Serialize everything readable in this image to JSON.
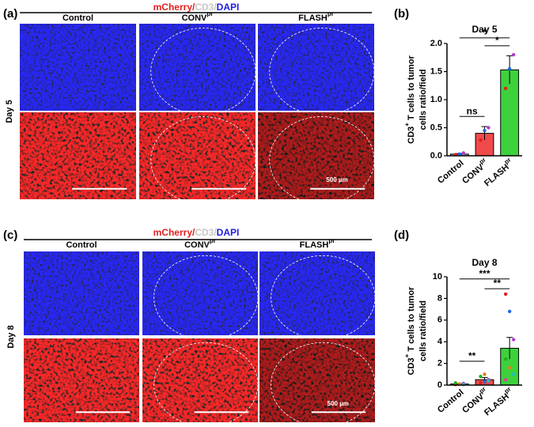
{
  "panels": [
    "(a)",
    "(b)",
    "(c)",
    "(d)"
  ],
  "images": [
    {
      "title_parts": [
        "mCherry/",
        "CD3/",
        "DAPI"
      ],
      "title_colors": [
        "#e0201e",
        "#c8c8c8",
        "#1e1ee0"
      ],
      "columns": [
        {
          "text": "Control"
        },
        {
          "text": "CONV",
          "sup": "pr"
        },
        {
          "text": "FLASH",
          "sup": "pr"
        }
      ],
      "row_label": "Day 5",
      "scale_label": "500 µm"
    },
    {
      "title_parts": [
        "mCherry/",
        "CD3/",
        "DAPI"
      ],
      "title_colors": [
        "#e0201e",
        "#c8c8c8",
        "#1e1ee0"
      ],
      "columns": [
        {
          "text": "Control"
        },
        {
          "text": "CONV",
          "sup": "pr"
        },
        {
          "text": "FLASH",
          "sup": "pr"
        }
      ],
      "row_label": "Day 8",
      "scale_label": "500 µm"
    }
  ],
  "chart_data": [
    {
      "type": "bar",
      "title": "Day 5",
      "ylabel": {
        "main": "CD3",
        "sup": "+",
        "rest": " T cells to tumor",
        "line2": "cells ratio/field"
      },
      "categories": [
        "Control",
        "CONV",
        "FLASH"
      ],
      "category_superscripts": [
        null,
        "pr",
        "pr"
      ],
      "values": [
        0.03,
        0.4,
        1.53
      ],
      "errors": [
        0.01,
        0.12,
        0.25
      ],
      "colors": [
        "#9e9e9e",
        "#f04a4a",
        "#3dd13d"
      ],
      "points": [
        [
          0.02,
          0.03,
          0.05
        ],
        [
          0.28,
          0.45,
          0.5
        ],
        [
          1.2,
          1.55,
          1.8
        ]
      ],
      "point_colors": [
        "#e0201e",
        "#1e6be0",
        "#b040d0"
      ],
      "annotations": [
        "*",
        "*",
        "ns"
      ],
      "ylim": [
        0,
        2
      ],
      "yticks": [
        {
          "value": 0,
          "label": "0.0"
        },
        {
          "value": 0.5,
          "label": "0.5"
        },
        {
          "value": 1,
          "label": "1.0"
        },
        {
          "value": 1.5,
          "label": "1.5"
        },
        {
          "value": 2,
          "label": "2.0"
        }
      ]
    },
    {
      "type": "bar",
      "title": "Day 8",
      "ylabel": {
        "main": "CD3",
        "sup": "+",
        "rest": " T cells to tumor",
        "line2": "cells ratio/field"
      },
      "categories": [
        "Control",
        "CONV",
        "FLASH"
      ],
      "category_superscripts": [
        null,
        "pr",
        "pr"
      ],
      "values": [
        0.1,
        0.5,
        3.4
      ],
      "errors": [
        0.03,
        0.2,
        1.0
      ],
      "colors": [
        "#9e9e9e",
        "#f04a4a",
        "#3dd13d"
      ],
      "points": [
        [
          0.05,
          0.1,
          0.15,
          0.2,
          0.1,
          0.05
        ],
        [
          0.2,
          0.3,
          0.5,
          0.8,
          1.0,
          0.4
        ],
        [
          8.4,
          6.8,
          4.2,
          2.4,
          1.6,
          1.0,
          0.5
        ]
      ],
      "point_colors": [
        "#e0201e",
        "#1e6be0",
        "#b040d0",
        "#20b020",
        "#e08020",
        "#20c0c0",
        "#e040a0"
      ],
      "annotations": [
        "***",
        "**",
        "**"
      ],
      "ylim": [
        0,
        10
      ],
      "yticks": [
        0,
        2,
        4,
        6,
        8,
        10
      ]
    }
  ]
}
